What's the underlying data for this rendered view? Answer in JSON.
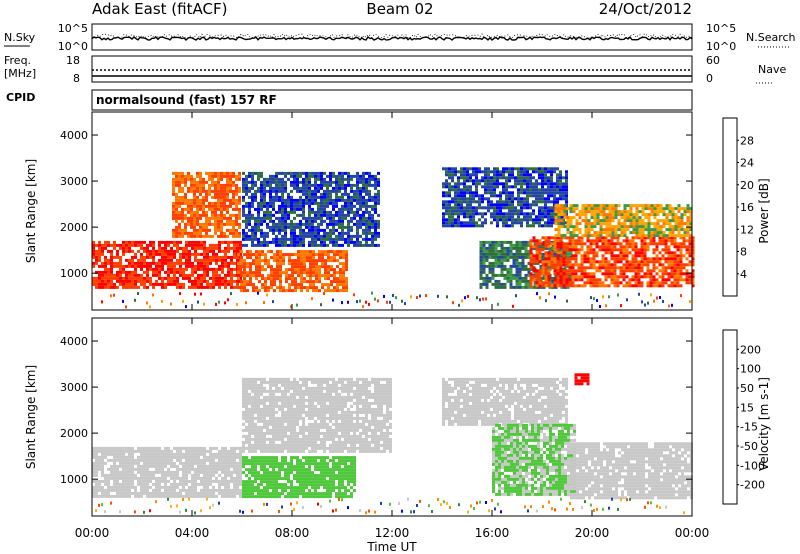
{
  "header": {
    "station": "Adak East (fitACF)",
    "beam": "Beam 02",
    "date": "24/Oct/2012"
  },
  "noise_panel": {
    "left_label": "N.Sky",
    "right_label": "N.Search",
    "tick_top": "10^5",
    "tick_bottom": "10^0",
    "right_tick_top": "10^5",
    "right_tick_bottom": "10^0"
  },
  "freq_panel": {
    "left_label_1": "Freq.",
    "left_label_2": "[MHz]",
    "left_tick_top": "18",
    "left_tick_bottom": "8",
    "right_label": "Nave",
    "right_tick_top": "60",
    "right_tick_bottom": "0"
  },
  "cpid": {
    "label": "CPID",
    "program": "normalsound (fast) 157 RF"
  },
  "x_axis": {
    "label": "Time UT",
    "ticks": [
      "00:00",
      "04:00",
      "08:00",
      "12:00",
      "16:00",
      "20:00",
      "00:00"
    ],
    "range_hours": [
      0,
      24
    ]
  },
  "colors": {
    "power_scale": [
      "#0000ff",
      "#2345a5",
      "#2e6e3c",
      "#3c9a46",
      "#ffa500",
      "#ff7800",
      "#ff4000",
      "#ff0000"
    ],
    "velocity_scale": [
      "#ff0000",
      "#ff5000",
      "#ff8c00",
      "#ffb020",
      "#c8c8c8",
      "#50c83c",
      "#2e8b3c",
      "#2040a0",
      "#0000ff"
    ],
    "ground_scatter": "#c8c8c8"
  },
  "chart_data": [
    {
      "type": "heatmap",
      "id": "power",
      "ylabel": "Slant Range [km]",
      "yticks": [
        1000,
        2000,
        3000,
        4000
      ],
      "ylim": [
        200,
        4500
      ],
      "colorbar_label": "Power [dB]",
      "colorbar_ticks": [
        "4",
        "8",
        "12",
        "16",
        "20",
        "24",
        "28"
      ],
      "colorbar_range": [
        0,
        32
      ],
      "regions": [
        {
          "t": [
            0.0,
            6.0
          ],
          "r": [
            700,
            1700
          ],
          "level": 28
        },
        {
          "t": [
            3.2,
            5.9
          ],
          "r": [
            1800,
            3200
          ],
          "level": 24
        },
        {
          "t": [
            5.8,
            10.2
          ],
          "r": [
            600,
            1500
          ],
          "level": 24
        },
        {
          "t": [
            6.0,
            11.5
          ],
          "r": [
            1600,
            3200
          ],
          "level": 6
        },
        {
          "t": [
            14.0,
            19.0
          ],
          "r": [
            2000,
            3300
          ],
          "level": 6
        },
        {
          "t": [
            15.5,
            19.2
          ],
          "r": [
            700,
            1700
          ],
          "level": 10
        },
        {
          "t": [
            17.5,
            24.0
          ],
          "r": [
            700,
            1800
          ],
          "level": 26
        },
        {
          "t": [
            18.5,
            24.0
          ],
          "r": [
            1800,
            2500
          ],
          "level": 18
        }
      ]
    },
    {
      "type": "heatmap",
      "id": "velocity",
      "ylabel": "Slant Range [km]",
      "yticks": [
        1000,
        2000,
        3000,
        4000
      ],
      "ylim": [
        200,
        4500
      ],
      "colorbar_label": "Velocity [m s-1]",
      "colorbar_ticks": [
        "-200",
        "-100",
        "-50",
        "-15",
        "15",
        "50",
        "100",
        "200"
      ],
      "colorbar_range": [
        -250,
        250
      ],
      "regions": [
        {
          "t": [
            0.0,
            6.0
          ],
          "r": [
            600,
            1700
          ],
          "level": 0
        },
        {
          "t": [
            6.0,
            10.5
          ],
          "r": [
            600,
            1500
          ],
          "level": 40
        },
        {
          "t": [
            6.0,
            12.0
          ],
          "r": [
            1600,
            3200
          ],
          "level": 0
        },
        {
          "t": [
            14.0,
            19.0
          ],
          "r": [
            2200,
            3200
          ],
          "level": 0
        },
        {
          "t": [
            16.0,
            19.3
          ],
          "r": [
            700,
            2200
          ],
          "level": 30
        },
        {
          "t": [
            19.0,
            24.0
          ],
          "r": [
            600,
            1800
          ],
          "level": 0
        },
        {
          "t": [
            19.3,
            19.8
          ],
          "r": [
            3100,
            3300
          ],
          "level": -220
        }
      ]
    }
  ]
}
